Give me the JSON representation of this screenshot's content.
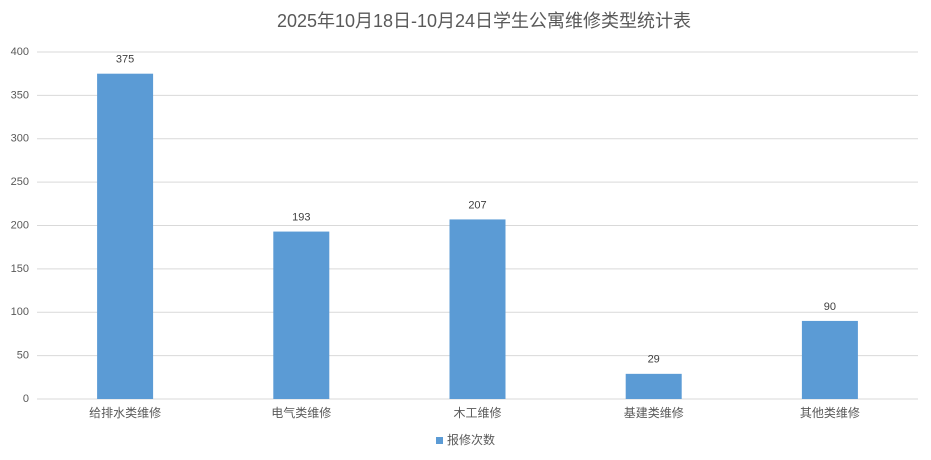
{
  "chart_data": {
    "type": "bar",
    "title": "2025年10月18日-10月24日学生公寓维修类型统计表",
    "categories": [
      "给排水类维修",
      "电气类维修",
      "木工维修",
      "基建类维修",
      "其他类维修"
    ],
    "series": [
      {
        "name": "报修次数",
        "color": "#5b9bd5",
        "values": [
          375,
          193,
          207,
          29,
          90
        ]
      }
    ],
    "ylim": [
      0,
      400
    ],
    "yticks": [
      0,
      50,
      100,
      150,
      200,
      250,
      300,
      350,
      400
    ],
    "grid": true,
    "legend": "bottom"
  }
}
